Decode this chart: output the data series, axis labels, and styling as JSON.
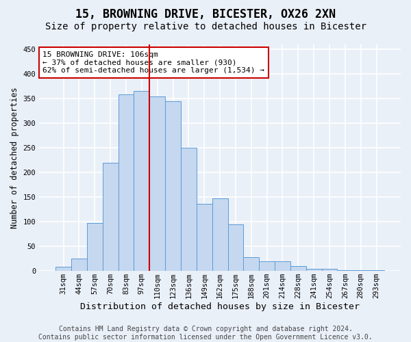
{
  "title": "15, BROWNING DRIVE, BICESTER, OX26 2XN",
  "subtitle": "Size of property relative to detached houses in Bicester",
  "xlabel": "Distribution of detached houses by size in Bicester",
  "ylabel": "Number of detached properties",
  "categories": [
    "31sqm",
    "44sqm",
    "57sqm",
    "70sqm",
    "83sqm",
    "97sqm",
    "110sqm",
    "123sqm",
    "136sqm",
    "149sqm",
    "162sqm",
    "175sqm",
    "188sqm",
    "201sqm",
    "214sqm",
    "228sqm",
    "241sqm",
    "254sqm",
    "267sqm",
    "280sqm",
    "293sqm"
  ],
  "values": [
    8,
    25,
    98,
    220,
    358,
    365,
    355,
    345,
    250,
    136,
    148,
    95,
    28,
    20,
    20,
    10,
    4,
    4,
    1,
    1,
    1
  ],
  "bar_color": "#c5d8f0",
  "bar_edge_color": "#5b9bd5",
  "vline_x": 5.5,
  "vline_color": "#cc0000",
  "annotation_text": "15 BROWNING DRIVE: 106sqm\n← 37% of detached houses are smaller (930)\n62% of semi-detached houses are larger (1,534) →",
  "annotation_box_color": "#ffffff",
  "annotation_box_edge": "#cc0000",
  "ylim": [
    0,
    460
  ],
  "yticks": [
    0,
    50,
    100,
    150,
    200,
    250,
    300,
    350,
    400,
    450
  ],
  "footer": "Contains HM Land Registry data © Crown copyright and database right 2024.\nContains public sector information licensed under the Open Government Licence v3.0.",
  "background_color": "#eaf0f8",
  "plot_bg_color": "#eaf0f8",
  "grid_color": "#ffffff",
  "title_fontsize": 12,
  "subtitle_fontsize": 10,
  "xlabel_fontsize": 9.5,
  "ylabel_fontsize": 8.5,
  "tick_fontsize": 7.5,
  "footer_fontsize": 7
}
